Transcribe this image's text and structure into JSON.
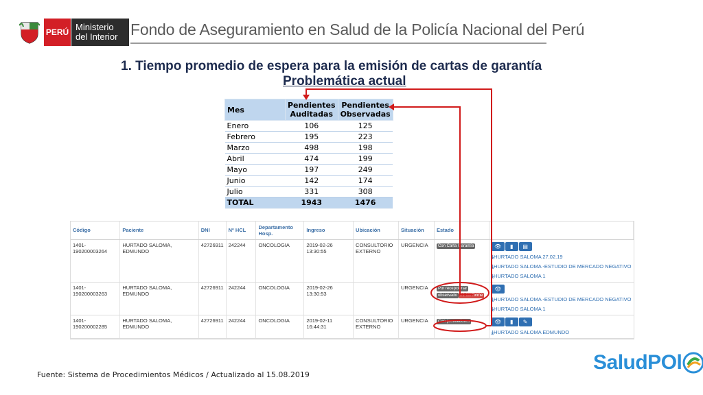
{
  "header": {
    "peru_label": "PERÚ",
    "ministry_label_line1": "Ministerio",
    "ministry_label_line2": "del Interior",
    "fondo_title": "Fondo de Aseguramiento en Salud de la Policía Nacional del Perú"
  },
  "title": "1.  Tiempo promedio de espera para la emisión de cartas de garantía",
  "subtitle": "Problemática actual",
  "summary_table": {
    "headers": [
      "Mes",
      "Pendientes Auditadas",
      "Pendientes Observadas"
    ],
    "rows": [
      [
        "Enero",
        "106",
        "125"
      ],
      [
        "Febrero",
        "195",
        "223"
      ],
      [
        "Marzo",
        "498",
        "198"
      ],
      [
        "Abril",
        "474",
        "199"
      ],
      [
        "Mayo",
        "197",
        "249"
      ],
      [
        "Junio",
        "142",
        "174"
      ],
      [
        "Julio",
        "331",
        "308"
      ]
    ],
    "total": [
      "TOTAL",
      "1943",
      "1476"
    ]
  },
  "grid": {
    "headers": [
      "Código",
      "Paciente",
      "DNI",
      "Nº HCL",
      "Departamento Hosp.",
      "Ingreso",
      "Ubicación",
      "Situación",
      "Estado",
      ""
    ],
    "rows": [
      {
        "codigo": "1401-190200003264",
        "paciente": "HURTADO SALOMA, EDMUNDO",
        "dni": "42726911",
        "hcl": "242244",
        "departamento": "ONCOLOGIA",
        "ingreso": "2019-02-26 13:30:55",
        "ubicacion": "CONSULTORIO EXTERNO",
        "situacion": "URGENCIA",
        "estado": [
          "Con Carta Garantía"
        ],
        "buttons": [
          "eye-icon",
          "chart-icon",
          "document-icon"
        ],
        "links": [
          "HURTADO SALOMA 27.02.19",
          "HURTADO SALOMA -ESTUDIO DE MERCADO NEGATIVO",
          "HURTADO SALOMA 1"
        ]
      },
      {
        "codigo": "1401-190200003263",
        "paciente": "HURTADO SALOMA, EDMUNDO",
        "dni": "42726911",
        "hcl": "242244",
        "departamento": "ONCOLOGIA",
        "ingreso": "2019-02-26 13:30:53",
        "ubicacion": "",
        "situacion": "URGENCIA",
        "estado": [
          "Por recepcionar",
          "observado",
          "no conforme"
        ],
        "buttons": [
          "eye-icon"
        ],
        "links": [
          "HURTADO SALOMA -ESTUDIO DE MERCADO NEGATIVO",
          "HURTADO SALOMA 1"
        ]
      },
      {
        "codigo": "1401-190200002285",
        "paciente": "HURTADO SALOMA, EDMUNDO",
        "dni": "42726911",
        "hcl": "242244",
        "departamento": "ONCOLOGIA",
        "ingreso": "2019-02-11 16:44:31",
        "ubicacion": "CONSULTORIO EXTERNO",
        "situacion": "URGENCIA",
        "estado": [
          "Con proveedores"
        ],
        "buttons": [
          "eye-icon",
          "chart-icon",
          "pencil-icon"
        ],
        "links": [
          "HURTADO SALOMA EDMUNDO"
        ]
      }
    ]
  },
  "footer": "Fuente: Sistema de Procedimientos Médicos / Actualizado al 15.08.2019",
  "logo": {
    "text": "SaludPOl"
  },
  "colors": {
    "accent_red": "#d31f26",
    "arrow_red": "#d11b1b",
    "link_blue": "#2f6fb2",
    "table_header_blue": "#bfd6ee"
  }
}
